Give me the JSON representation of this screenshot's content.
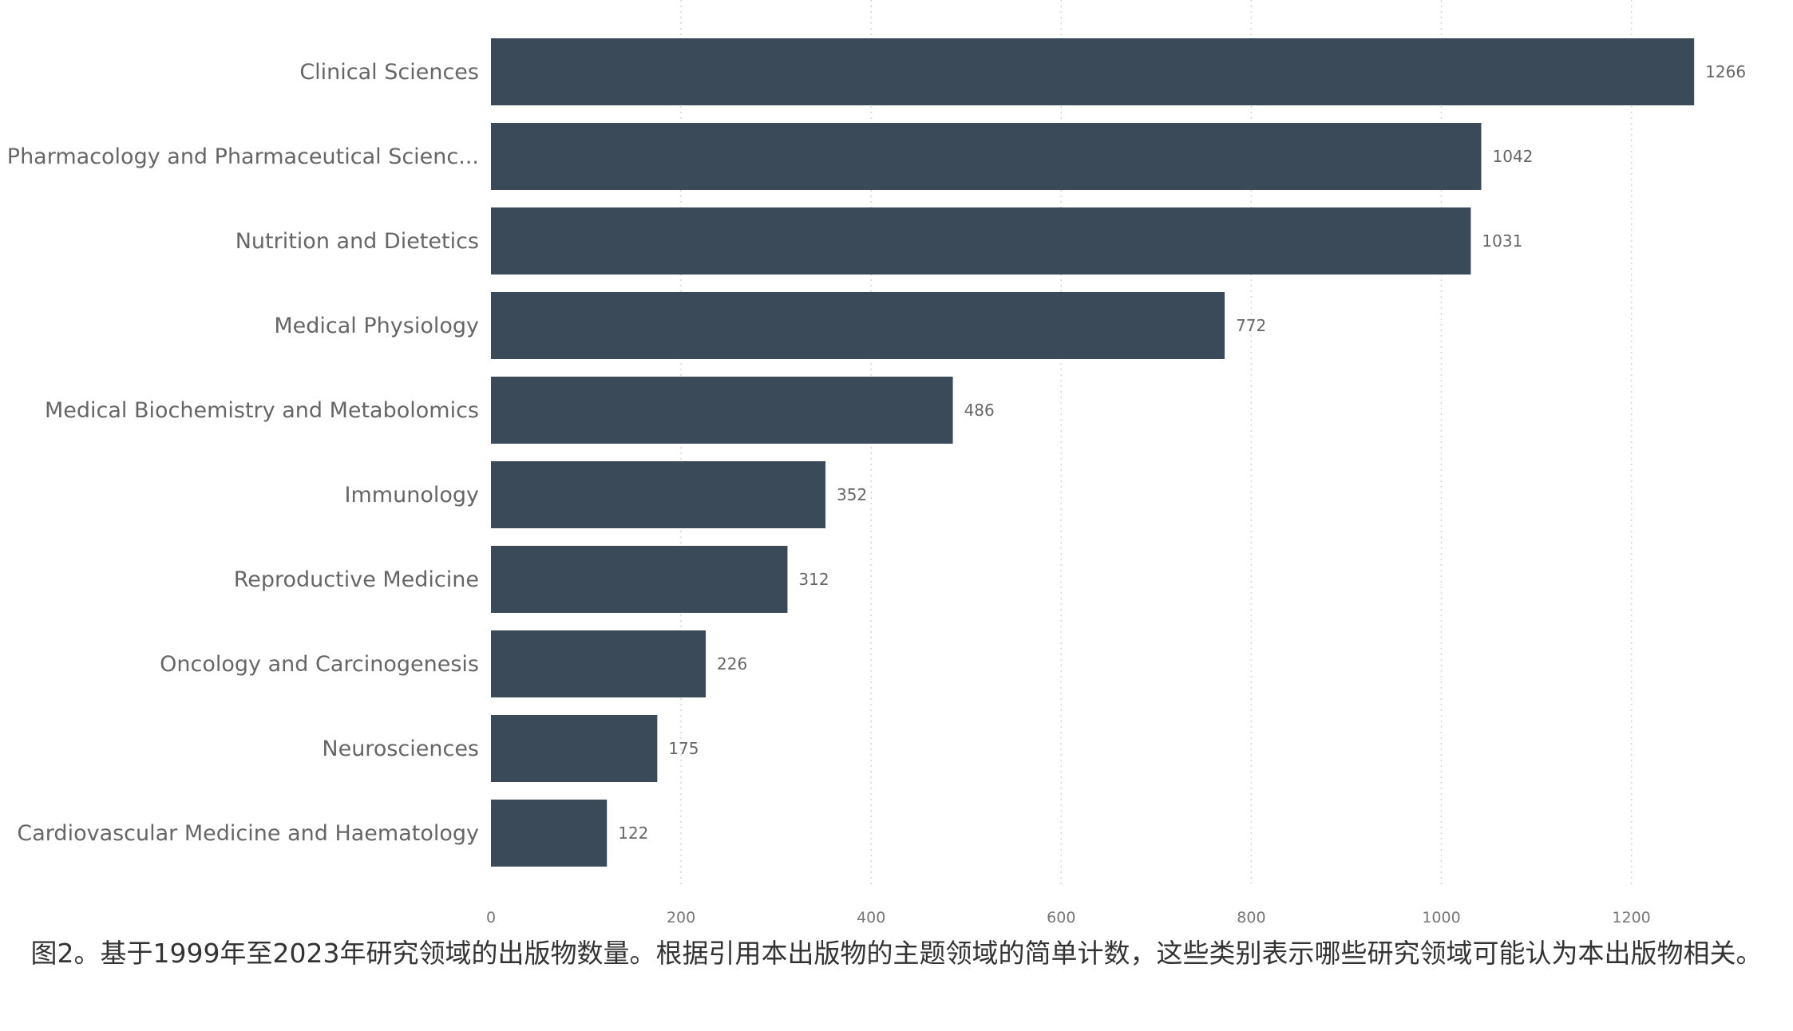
{
  "chart_data": {
    "type": "bar",
    "orientation": "horizontal",
    "categories": [
      "Clinical Sciences",
      "Pharmacology and Pharmaceutical Scienc...",
      "Nutrition and Dietetics",
      "Medical Physiology",
      "Medical Biochemistry and Metabolomics",
      "Immunology",
      "Reproductive Medicine",
      "Oncology and Carcinogenesis",
      "Neurosciences",
      "Cardiovascular Medicine and Haematology"
    ],
    "values": [
      1266,
      1042,
      1031,
      772,
      486,
      352,
      312,
      226,
      175,
      122
    ],
    "data_labels": [
      "1266",
      "1042",
      "1031",
      "772",
      "486",
      "352",
      "312",
      "226",
      "175",
      "122"
    ],
    "xlim": [
      0,
      1300
    ],
    "xticks": [
      0,
      200,
      400,
      600,
      800,
      1000,
      1200
    ],
    "xtick_labels": [
      "0",
      "200",
      "400",
      "600",
      "800",
      "1000",
      "1200"
    ],
    "grid": "vertical dotted",
    "bar_color": "#3b4a59",
    "title": "",
    "xlabel": "",
    "ylabel": ""
  },
  "caption": "图2。基于1999年至2023年研究领域的出版物数量。根据引用本出版物的主题领域的简单计数，这些类别表示哪些研究领域可能认为本出版物相关。"
}
